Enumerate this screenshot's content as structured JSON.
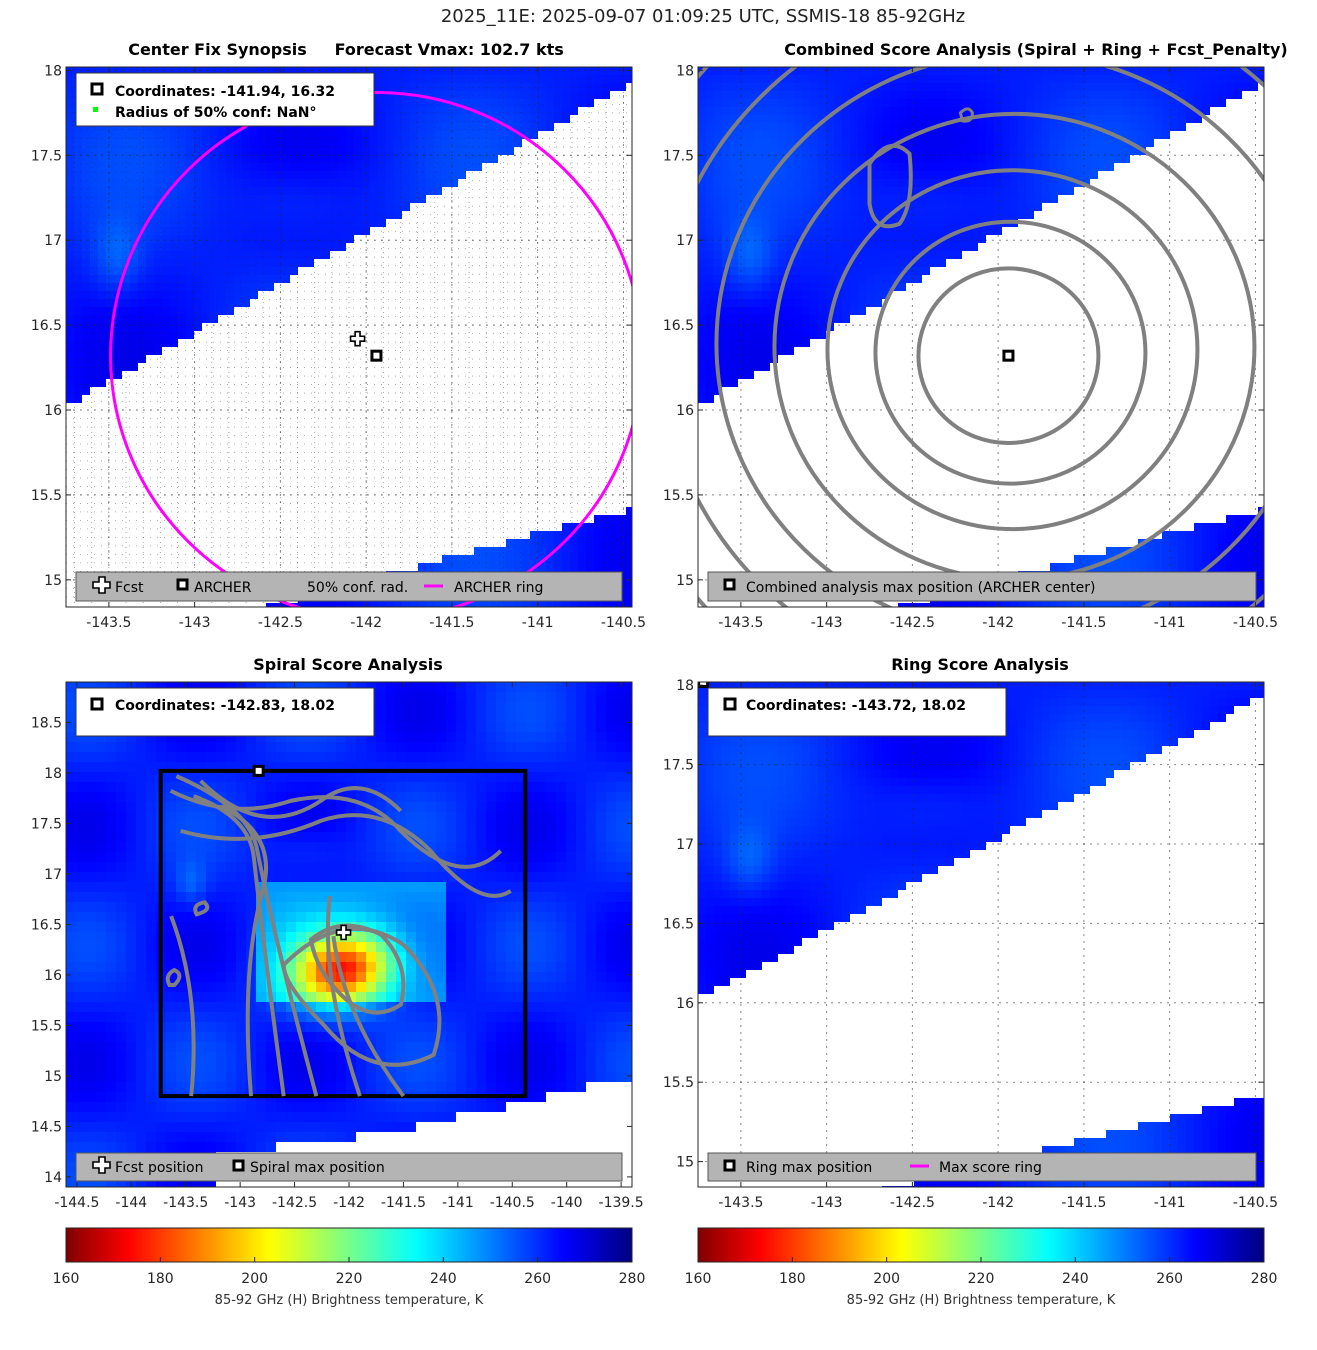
{
  "figure": {
    "suptitle": "2025_11E: 2025-09-07 01:09:25 UTC, SSMIS-18 85-92GHz"
  },
  "colors": {
    "contour": "#808080",
    "ring": "#ff00ff",
    "conf": "#00ff00",
    "legend_bg": "#b4b4b4",
    "land_white": "#ffffff",
    "cold_core": "#00c8ff"
  },
  "chart_data": [
    {
      "type": "heatmap",
      "id": "center_fix",
      "title": "Center Fix Synopsis     Forecast Vmax: 102.7 kts",
      "xlim": [
        -143.75,
        -140.45
      ],
      "ylim": [
        14.84,
        18.02
      ],
      "xticks": [
        -143.5,
        -143,
        -142.5,
        -142,
        -141.5,
        -141,
        -140.5
      ],
      "xtick_labels": [
        "-143.5",
        "-143",
        "-142.5",
        "-142",
        "-141.5",
        "-141",
        "-140.5"
      ],
      "yticks": [
        15,
        15.5,
        16,
        16.5,
        17,
        17.5,
        18
      ],
      "ytick_labels": [
        "15",
        "15.5",
        "16",
        "16.5",
        "17",
        "17.5",
        "18"
      ],
      "fcst": [
        -142.05,
        16.42
      ],
      "archer": [
        -141.94,
        16.32
      ],
      "ring_radius_deg": 1.55,
      "info_lines": [
        "Coordinates: -141.94, 16.32",
        "Radius of 50% conf: NaN°"
      ],
      "legend": [
        "Fcst",
        "ARCHER",
        "50% conf. rad.",
        "ARCHER ring"
      ],
      "colorscale": "jet",
      "clim": [
        160,
        280
      ]
    },
    {
      "type": "heatmap",
      "id": "combined",
      "title": "Combined Score Analysis (Spiral + Ring + Fcst_Penalty)",
      "xlim": [
        -143.75,
        -140.45
      ],
      "ylim": [
        14.84,
        18.02
      ],
      "xticks": [
        -143.5,
        -143,
        -142.5,
        -142,
        -141.5,
        -141,
        -140.5
      ],
      "xtick_labels": [
        "-143.5",
        "-143",
        "-142.5",
        "-142",
        "-141.5",
        "-141",
        "-140.5"
      ],
      "yticks": [
        15,
        15.5,
        16,
        16.5,
        17,
        17.5,
        18
      ],
      "ytick_labels": [
        "15",
        "15.5",
        "16",
        "16.5",
        "17",
        "17.5",
        "18"
      ],
      "archer": [
        -141.94,
        16.32
      ],
      "legend": [
        "Combined analysis max position (ARCHER center)"
      ],
      "colorscale": "jet",
      "clim": [
        160,
        280
      ]
    },
    {
      "type": "heatmap",
      "id": "spiral",
      "title": "Spiral Score Analysis",
      "xlim": [
        -144.6,
        -139.4
      ],
      "ylim": [
        13.9,
        18.9
      ],
      "xticks": [
        -144.5,
        -144,
        -143.5,
        -143,
        -142.5,
        -142,
        -141.5,
        -141,
        -140.5,
        -140,
        -139.5
      ],
      "xtick_labels": [
        "-144.5",
        "-144",
        "-143.5",
        "-143",
        "-142.5",
        "-142",
        "-141.5",
        "-141",
        "-140.5",
        "-140",
        "-139.5"
      ],
      "yticks": [
        14,
        14.5,
        15,
        15.5,
        16,
        16.5,
        17,
        17.5,
        18,
        18.5
      ],
      "ytick_labels": [
        "14",
        "14.5",
        "15",
        "15.5",
        "16",
        "16.5",
        "17",
        "17.5",
        "18",
        "18.5"
      ],
      "fcst": [
        -142.05,
        16.42
      ],
      "spiral_max": [
        -142.83,
        18.02
      ],
      "search_box": {
        "lon": [
          -143.73,
          -140.38
        ],
        "lat": [
          14.8,
          18.02
        ]
      },
      "info_lines": [
        "Coordinates: -142.83, 18.02"
      ],
      "legend": [
        "Fcst position",
        "Spiral max position"
      ],
      "colorscale": "jet",
      "clim": [
        160,
        280
      ]
    },
    {
      "type": "heatmap",
      "id": "ring",
      "title": "Ring Score Analysis",
      "xlim": [
        -143.75,
        -140.45
      ],
      "ylim": [
        14.84,
        18.02
      ],
      "xticks": [
        -143.5,
        -143,
        -142.5,
        -142,
        -141.5,
        -141,
        -140.5
      ],
      "xtick_labels": [
        "-143.5",
        "-143",
        "-142.5",
        "-142",
        "-141.5",
        "-141",
        "-140.5"
      ],
      "yticks": [
        15,
        15.5,
        16,
        16.5,
        17,
        17.5,
        18
      ],
      "ytick_labels": [
        "15",
        "15.5",
        "16",
        "16.5",
        "17",
        "17.5",
        "18"
      ],
      "ring_max": [
        -143.72,
        18.02
      ],
      "info_lines": [
        "Coordinates: -143.72, 18.02"
      ],
      "legend": [
        "Ring max position",
        "Max score ring"
      ],
      "colorscale": "jet",
      "clim": [
        160,
        280
      ]
    }
  ],
  "colorbars": [
    {
      "ticks": [
        160,
        180,
        200,
        220,
        240,
        260,
        280
      ],
      "tick_labels": [
        "160",
        "180",
        "200",
        "220",
        "240",
        "260",
        "280"
      ],
      "label": "85-92 GHz (H) Brightness temperature, K"
    },
    {
      "ticks": [
        160,
        180,
        200,
        220,
        240,
        260,
        280
      ],
      "tick_labels": [
        "160",
        "180",
        "200",
        "220",
        "240",
        "260",
        "280"
      ],
      "label": "85-92 GHz (H) Brightness temperature, K"
    }
  ]
}
